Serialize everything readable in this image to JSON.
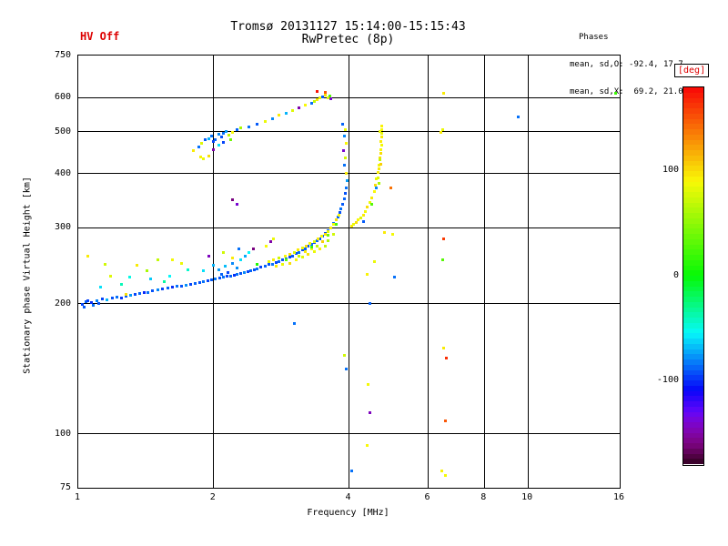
{
  "header": {
    "hv_status": "HV Off",
    "title": "Tromsø 20131127 15:14:00-15:15:43",
    "subtitle": "RwPretec (8p)",
    "phases_title": "Phases",
    "phases_o": "mean, sd,O: -92.4, 17.7",
    "phases_x": "mean, sd,X:  69.2, 21.0"
  },
  "axes": {
    "xlabel": "Frequency [MHz]",
    "ylabel": "Stationary phase Virtual Height [km]",
    "x_scale": "log",
    "y_scale": "log",
    "x_range": [
      1,
      16
    ],
    "y_range": [
      75,
      750
    ],
    "x_ticks": [
      1,
      2,
      4,
      6,
      8,
      10,
      16
    ],
    "x_grid": [
      2,
      4,
      6,
      8,
      10
    ],
    "y_ticks": [
      75,
      100,
      200,
      300,
      400,
      500,
      600,
      750
    ],
    "y_grid": [
      100,
      200,
      300,
      400,
      500,
      600
    ]
  },
  "colorbar": {
    "title": "[deg]",
    "units": "deg",
    "ticks": [
      100,
      0,
      -100
    ],
    "range": [
      -180,
      180
    ],
    "title_color": "#dd0000"
  },
  "colors": {
    "accent_red": "#dd0000",
    "axis": "#000000",
    "background": "#ffffff"
  },
  "chart_data": {
    "type": "scatter",
    "title": "Tromsø 20131127 15:14:00-15:15:43",
    "subtitle": "RwPretec (8p)",
    "xlabel": "Frequency [MHz]",
    "ylabel": "Stationary phase Virtual Height [km]",
    "xlim": [
      1,
      16
    ],
    "ylim": [
      75,
      750
    ],
    "x_scale": "log",
    "y_scale": "log",
    "color_dimension": "phase_deg",
    "color_range": [
      -180,
      180
    ],
    "point_format": [
      "freq_MHz",
      "virtual_height_km",
      "phase_deg"
    ],
    "points": [
      [
        1.02,
        199,
        -95
      ],
      [
        1.03,
        196,
        -90
      ],
      [
        1.04,
        202,
        -88
      ],
      [
        1.05,
        203,
        -96
      ],
      [
        1.07,
        201,
        -100
      ],
      [
        1.08,
        198,
        -85
      ],
      [
        1.1,
        203,
        -82
      ],
      [
        1.11,
        200,
        -92
      ],
      [
        1.13,
        205,
        -95
      ],
      [
        1.16,
        204,
        -70
      ],
      [
        1.19,
        206,
        -92
      ],
      [
        1.22,
        207,
        -85
      ],
      [
        1.25,
        206,
        -98
      ],
      [
        1.28,
        208,
        -90
      ],
      [
        1.31,
        209,
        -76
      ],
      [
        1.34,
        210,
        -95
      ],
      [
        1.37,
        211,
        -88
      ],
      [
        1.4,
        212,
        -102
      ],
      [
        1.43,
        212,
        -85
      ],
      [
        1.46,
        214,
        -92
      ],
      [
        1.5,
        215,
        -80
      ],
      [
        1.54,
        216,
        -95
      ],
      [
        1.58,
        217,
        -88
      ],
      [
        1.62,
        218,
        -100
      ],
      [
        1.66,
        219,
        -85
      ],
      [
        1.7,
        220,
        -92
      ],
      [
        1.74,
        221,
        -78
      ],
      [
        1.78,
        222,
        -95
      ],
      [
        1.82,
        223,
        -88
      ],
      [
        1.86,
        224,
        -92
      ],
      [
        1.9,
        225,
        -85
      ],
      [
        1.94,
        226,
        -95
      ],
      [
        1.98,
        227,
        -90
      ],
      [
        2.02,
        228,
        -84
      ],
      [
        1.12,
        218,
        -60
      ],
      [
        1.25,
        222,
        -40
      ],
      [
        1.3,
        230,
        -50
      ],
      [
        1.45,
        228,
        -65
      ],
      [
        1.55,
        225,
        -35
      ],
      [
        1.6,
        232,
        -55
      ],
      [
        1.75,
        240,
        -45
      ],
      [
        1.9,
        238,
        -60
      ],
      [
        2.0,
        245,
        -70
      ],
      [
        1.05,
        257,
        95
      ],
      [
        1.15,
        246,
        75
      ],
      [
        1.18,
        232,
        80
      ],
      [
        1.28,
        210,
        100
      ],
      [
        1.35,
        245,
        95
      ],
      [
        1.42,
        238,
        60
      ],
      [
        1.5,
        252,
        70
      ],
      [
        1.62,
        252,
        88
      ],
      [
        1.7,
        248,
        85
      ],
      [
        2.1,
        262,
        75
      ],
      [
        2.2,
        255,
        95
      ],
      [
        1.95,
        258,
        -145
      ],
      [
        2.45,
        268,
        -160
      ],
      [
        2.68,
        278,
        -150
      ],
      [
        2.2,
        348,
        -160
      ],
      [
        2.26,
        340,
        -140
      ],
      [
        2.06,
        229,
        -92
      ],
      [
        2.1,
        230,
        -85
      ],
      [
        2.14,
        231,
        -95
      ],
      [
        2.18,
        232,
        -88
      ],
      [
        2.22,
        233,
        -100
      ],
      [
        2.26,
        234,
        -85
      ],
      [
        2.3,
        235,
        -92
      ],
      [
        2.34,
        236,
        -80
      ],
      [
        2.38,
        237,
        -95
      ],
      [
        2.42,
        238,
        -88
      ],
      [
        2.46,
        240,
        -92
      ],
      [
        2.5,
        241,
        -85
      ],
      [
        2.55,
        243,
        -95
      ],
      [
        2.6,
        244,
        -88
      ],
      [
        2.65,
        246,
        -92
      ],
      [
        2.7,
        247,
        -85
      ],
      [
        2.75,
        249,
        -95
      ],
      [
        2.8,
        250,
        -88
      ],
      [
        2.85,
        252,
        -92
      ],
      [
        2.9,
        254,
        -85
      ],
      [
        2.95,
        256,
        -95
      ],
      [
        3.0,
        258,
        -90
      ],
      [
        2.05,
        240,
        -75
      ],
      [
        2.08,
        234,
        -88
      ],
      [
        2.12,
        244,
        -68
      ],
      [
        2.15,
        236,
        -95
      ],
      [
        2.2,
        248,
        -80
      ],
      [
        2.25,
        242,
        -78
      ],
      [
        2.3,
        252,
        -60
      ],
      [
        2.35,
        258,
        -72
      ],
      [
        2.4,
        262,
        -55
      ],
      [
        2.28,
        268,
        -85
      ],
      [
        3.05,
        261,
        -92
      ],
      [
        3.1,
        263,
        -85
      ],
      [
        3.15,
        266,
        -95
      ],
      [
        3.2,
        268,
        -88
      ],
      [
        3.25,
        271,
        -92
      ],
      [
        3.3,
        274,
        -85
      ],
      [
        3.35,
        277,
        -95
      ],
      [
        3.4,
        280,
        -88
      ],
      [
        3.45,
        283,
        -92
      ],
      [
        3.5,
        287,
        -85
      ],
      [
        3.55,
        291,
        -95
      ],
      [
        3.6,
        295,
        -88
      ],
      [
        3.65,
        300,
        -92
      ],
      [
        3.7,
        306,
        -85
      ],
      [
        3.74,
        312,
        -95
      ],
      [
        3.78,
        318,
        -88
      ],
      [
        3.81,
        325,
        -92
      ],
      [
        3.84,
        332,
        -85
      ],
      [
        3.87,
        340,
        -90
      ],
      [
        3.9,
        350,
        -88
      ],
      [
        3.92,
        360,
        -92
      ],
      [
        3.94,
        370,
        -85
      ],
      [
        2.65,
        250,
        85
      ],
      [
        2.72,
        252,
        95
      ],
      [
        2.8,
        255,
        75
      ],
      [
        2.88,
        258,
        90
      ],
      [
        2.95,
        260,
        100
      ],
      [
        3.02,
        263,
        80
      ],
      [
        3.08,
        266,
        95
      ],
      [
        3.15,
        269,
        85
      ],
      [
        3.22,
        272,
        100
      ],
      [
        3.28,
        275,
        90
      ],
      [
        3.35,
        278,
        78
      ],
      [
        3.42,
        282,
        95
      ],
      [
        3.48,
        286,
        88
      ],
      [
        3.55,
        290,
        100
      ],
      [
        3.6,
        294,
        82
      ],
      [
        3.65,
        299,
        95
      ],
      [
        3.7,
        305,
        88
      ],
      [
        3.75,
        312,
        100
      ],
      [
        3.8,
        320,
        90
      ],
      [
        2.75,
        244,
        95
      ],
      [
        2.85,
        246,
        85
      ],
      [
        2.95,
        248,
        100
      ],
      [
        3.05,
        252,
        90
      ],
      [
        3.15,
        256,
        80
      ],
      [
        3.25,
        260,
        98
      ],
      [
        3.35,
        264,
        85
      ],
      [
        3.45,
        268,
        92
      ],
      [
        3.55,
        272,
        70
      ],
      [
        3.1,
        258,
        72
      ],
      [
        3.2,
        264,
        96
      ],
      [
        3.3,
        268,
        88
      ],
      [
        3.4,
        272,
        68
      ],
      [
        3.5,
        278,
        105
      ],
      [
        3.6,
        280,
        60
      ],
      [
        3.7,
        290,
        75
      ],
      [
        2.5,
        246,
        10
      ],
      [
        2.9,
        252,
        30
      ],
      [
        3.3,
        270,
        20
      ],
      [
        3.6,
        288,
        40
      ],
      [
        3.75,
        305,
        25
      ],
      [
        2.62,
        272,
        90
      ],
      [
        2.72,
        282,
        85
      ],
      [
        3.02,
        180,
        -85
      ],
      [
        4.05,
        302,
        95
      ],
      [
        4.1,
        305,
        85
      ],
      [
        4.15,
        308,
        100
      ],
      [
        4.2,
        312,
        90
      ],
      [
        4.25,
        316,
        80
      ],
      [
        4.3,
        321,
        95
      ],
      [
        4.35,
        327,
        88
      ],
      [
        4.4,
        334,
        100
      ],
      [
        4.45,
        342,
        85
      ],
      [
        4.5,
        352,
        95
      ],
      [
        4.55,
        364,
        90
      ],
      [
        4.58,
        375,
        100
      ],
      [
        4.61,
        388,
        85
      ],
      [
        4.64,
        402,
        95
      ],
      [
        4.66,
        418,
        88
      ],
      [
        4.68,
        435,
        100
      ],
      [
        4.7,
        455,
        90
      ],
      [
        4.71,
        475,
        95
      ],
      [
        4.72,
        495,
        85
      ],
      [
        4.73,
        515,
        92
      ],
      [
        4.65,
        390,
        80
      ],
      [
        4.67,
        410,
        95
      ],
      [
        4.69,
        430,
        70
      ],
      [
        4.7,
        445,
        100
      ],
      [
        4.72,
        465,
        88
      ],
      [
        4.74,
        485,
        95
      ],
      [
        4.68,
        500,
        85
      ],
      [
        4.73,
        505,
        90
      ],
      [
        4.66,
        380,
        60
      ],
      [
        4.7,
        420,
        105
      ],
      [
        4.3,
        310,
        -90
      ],
      [
        4.5,
        340,
        30
      ],
      [
        4.6,
        370,
        -80
      ],
      [
        1.8,
        452,
        95
      ],
      [
        1.85,
        460,
        -85
      ],
      [
        1.87,
        436,
        92
      ],
      [
        1.88,
        470,
        80
      ],
      [
        1.9,
        432,
        85
      ],
      [
        1.92,
        478,
        -90
      ],
      [
        1.95,
        440,
        100
      ],
      [
        1.95,
        482,
        -70
      ],
      [
        1.98,
        488,
        -85
      ],
      [
        2.0,
        455,
        -150
      ],
      [
        2.0,
        475,
        -95
      ],
      [
        2.02,
        480,
        -88
      ],
      [
        2.05,
        465,
        -60
      ],
      [
        2.05,
        492,
        -80
      ],
      [
        2.08,
        485,
        -92
      ],
      [
        2.1,
        472,
        -95
      ],
      [
        2.1,
        495,
        -85
      ],
      [
        2.13,
        500,
        -75
      ],
      [
        2.16,
        490,
        70
      ],
      [
        2.18,
        478,
        40
      ],
      [
        2.2,
        498,
        90
      ],
      [
        2.25,
        505,
        -88
      ],
      [
        2.3,
        510,
        60
      ],
      [
        2.4,
        512,
        -85
      ],
      [
        2.5,
        520,
        -90
      ],
      [
        2.6,
        528,
        85
      ],
      [
        2.7,
        535,
        -80
      ],
      [
        2.8,
        545,
        95
      ],
      [
        2.9,
        552,
        -70
      ],
      [
        3.0,
        560,
        80
      ],
      [
        3.1,
        568,
        -150
      ],
      [
        3.2,
        575,
        90
      ],
      [
        3.3,
        582,
        -85
      ],
      [
        3.35,
        588,
        70
      ],
      [
        3.4,
        592,
        95
      ],
      [
        3.4,
        618,
        175
      ],
      [
        3.45,
        598,
        85
      ],
      [
        3.5,
        602,
        -90
      ],
      [
        3.55,
        608,
        100
      ],
      [
        3.55,
        615,
        150
      ],
      [
        3.6,
        600,
        80
      ],
      [
        3.62,
        604,
        30
      ],
      [
        3.65,
        595,
        -140
      ],
      [
        3.88,
        520,
        -88
      ],
      [
        3.92,
        505,
        85
      ],
      [
        3.9,
        488,
        -80
      ],
      [
        3.94,
        470,
        90
      ],
      [
        3.89,
        452,
        -140
      ],
      [
        3.93,
        435,
        75
      ],
      [
        3.91,
        418,
        -85
      ],
      [
        3.95,
        400,
        95
      ],
      [
        3.96,
        385,
        -75
      ],
      [
        3.9,
        152,
        75
      ],
      [
        3.95,
        141,
        -85
      ],
      [
        4.06,
        82,
        -85
      ],
      [
        4.4,
        234,
        92
      ],
      [
        4.45,
        200,
        -88
      ],
      [
        4.42,
        130,
        88
      ],
      [
        4.46,
        112,
        -145
      ],
      [
        4.4,
        94,
        90
      ],
      [
        4.55,
        250,
        85
      ],
      [
        4.8,
        292,
        95
      ],
      [
        4.95,
        370,
        140
      ],
      [
        5.0,
        290,
        88
      ],
      [
        5.05,
        230,
        -85
      ],
      [
        6.4,
        497,
        95
      ],
      [
        6.45,
        505,
        85
      ],
      [
        6.5,
        612,
        95
      ],
      [
        6.5,
        283,
        160
      ],
      [
        6.45,
        252,
        30
      ],
      [
        6.5,
        158,
        95
      ],
      [
        6.6,
        150,
        165
      ],
      [
        6.55,
        107,
        150
      ],
      [
        6.42,
        82,
        92
      ],
      [
        6.56,
        80,
        88
      ],
      [
        9.5,
        542,
        -85
      ],
      [
        15.7,
        612,
        20
      ]
    ]
  }
}
